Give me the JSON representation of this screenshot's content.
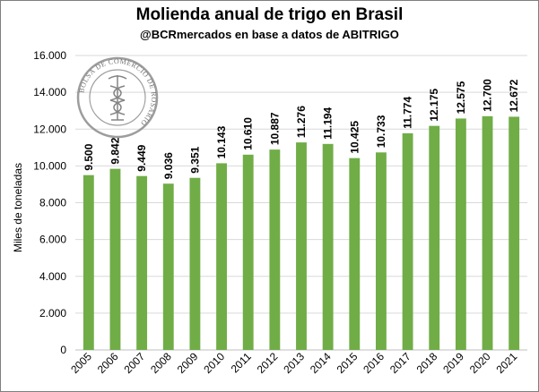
{
  "chart_data": {
    "type": "bar",
    "title": "Molienda anual de trigo en Brasil",
    "subtitle": "@BCRmercados en base a datos de ABITRIGO",
    "xlabel": "",
    "ylabel": "Miles de toneladas",
    "categories": [
      "2005",
      "2006",
      "2007",
      "2008",
      "2009",
      "2010",
      "2011",
      "2012",
      "2013",
      "2014",
      "2015",
      "2016",
      "2017",
      "2018",
      "2019",
      "2020",
      "2021"
    ],
    "values": [
      9500,
      9842,
      9449,
      9036,
      9351,
      10143,
      10610,
      10887,
      11276,
      11194,
      10425,
      10733,
      11774,
      12175,
      12575,
      12700,
      12672
    ],
    "data_labels": [
      "9.500",
      "9.842",
      "9.449",
      "9.036",
      "9.351",
      "10.143",
      "10.610",
      "10.887",
      "11.276",
      "11.194",
      "10.425",
      "10.733",
      "11.774",
      "12.175",
      "12.575",
      "12.700",
      "12.672"
    ],
    "yticks": [
      0,
      2000,
      4000,
      6000,
      8000,
      10000,
      12000,
      14000,
      16000
    ],
    "ytick_labels": [
      "0",
      "2.000",
      "4.000",
      "6.000",
      "8.000",
      "10.000",
      "12.000",
      "14.000",
      "16.000"
    ],
    "ylim": [
      0,
      16000
    ],
    "grid": true,
    "legend": "none",
    "colors": {
      "bar": "#70ad47",
      "grid": "#d9d9d9",
      "axis": "#bfbfbf"
    }
  },
  "logo": {
    "text": "BOLSA DE COMERCIO DE ROSARIO",
    "icon": "caduceus-icon"
  }
}
